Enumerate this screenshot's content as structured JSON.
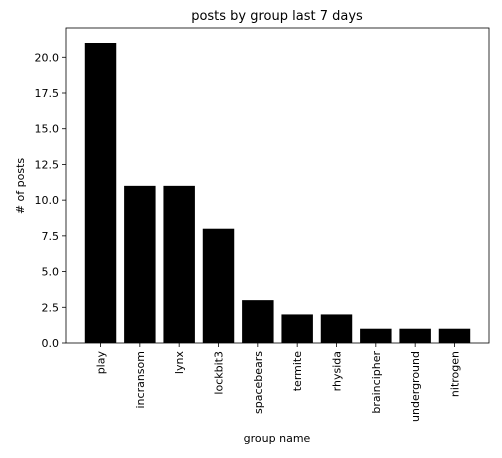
{
  "chart_data": {
    "type": "bar",
    "title": "posts by group last 7 days",
    "x_label": "group name",
    "y_label": "# of posts",
    "categories": [
      "play",
      "incransom",
      "lynx",
      "lockbit3",
      "spacebears",
      "termite",
      "rhysida",
      "braincipher",
      "underground",
      "nitrogen"
    ],
    "values": [
      21,
      11,
      11,
      8,
      3,
      2,
      2,
      1,
      1,
      1
    ],
    "color": "#000000",
    "ylim": [
      0,
      22.05
    ],
    "yticks": [
      {
        "value": 0,
        "label": "0.0"
      },
      2.5,
      {
        "value": 5,
        "label": "5.0"
      },
      7.5,
      {
        "value": 10,
        "label": "10.0"
      },
      12.5,
      {
        "value": 15,
        "label": "15.0"
      },
      17.5,
      {
        "value": 20,
        "label": "20.0"
      }
    ],
    "grid": false
  }
}
